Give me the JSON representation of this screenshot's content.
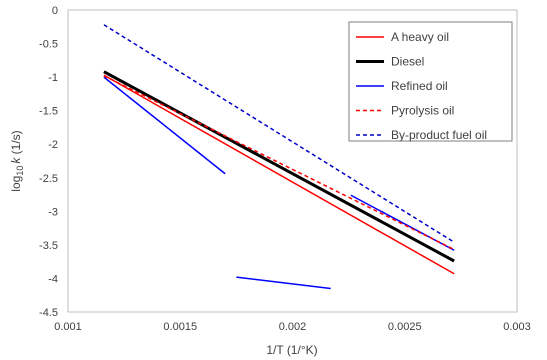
{
  "chart_data": {
    "type": "line",
    "xlabel": "1/T (1/°K)",
    "ylabel_parts": {
      "prefix": "log",
      "subscript": "10",
      "var": "k",
      "unit": " (1/s)"
    },
    "xlim": [
      0.001,
      0.003
    ],
    "ylim": [
      -4.5,
      0
    ],
    "xticks": [
      0.001,
      0.0015,
      0.002,
      0.0025,
      0.003
    ],
    "xtick_labels": [
      "0.001",
      "0.0015",
      "0.002",
      "0.0025",
      "0.003"
    ],
    "yticks": [
      0,
      -0.5,
      -1,
      -1.5,
      -2,
      -2.5,
      -3,
      -3.5,
      -4,
      -4.5
    ],
    "ytick_labels": [
      "0",
      "-0.5",
      "-1",
      "-1.5",
      "-2",
      "-2.5",
      "-3",
      "-3.5",
      "-4",
      "-4.5"
    ],
    "grid": false,
    "legend_position": "top-right",
    "series": [
      {
        "name": "A heavy oil",
        "color": "#ff0000",
        "style": "solid",
        "width": 1.5,
        "segments": [
          [
            [
              0.00116,
              -0.97
            ],
            [
              0.00272,
              -3.93
            ]
          ]
        ]
      },
      {
        "name": "Diesel",
        "color": "#000000",
        "style": "solid",
        "width": 3,
        "segments": [
          [
            [
              0.00116,
              -0.92
            ],
            [
              0.00272,
              -3.74
            ]
          ]
        ]
      },
      {
        "name": "Refined oil",
        "color": "#0000ff",
        "style": "solid",
        "width": 1.5,
        "segments": [
          [
            [
              0.00116,
              -1.0
            ],
            [
              0.0017,
              -2.44
            ]
          ],
          [
            [
              0.00175,
              -3.98
            ],
            [
              0.00217,
              -4.15
            ]
          ],
          [
            [
              0.00226,
              -2.76
            ],
            [
              0.00272,
              -3.58
            ]
          ]
        ]
      },
      {
        "name": "Pyrolysis oil",
        "color": "#ff0000",
        "style": "dashed",
        "width": 1.5,
        "segments": [
          [
            [
              0.00116,
              -0.98
            ],
            [
              0.00272,
              -3.57
            ]
          ]
        ]
      },
      {
        "name": "By-product fuel oil",
        "color": "#0000cc",
        "style": "dashed",
        "width": 1.5,
        "segments": [
          [
            [
              0.00116,
              -0.22
            ],
            [
              0.00272,
              -3.46
            ]
          ]
        ]
      }
    ]
  }
}
